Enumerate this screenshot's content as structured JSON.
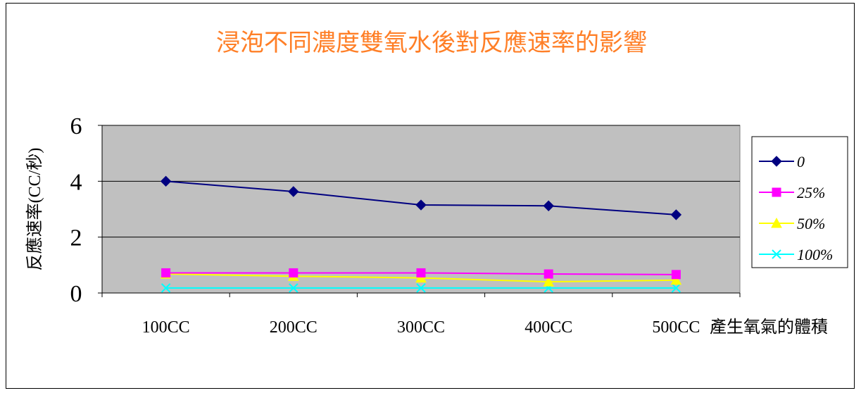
{
  "chart_data": {
    "type": "line",
    "title": "浸泡不同濃度雙氧水後對反應速率的影響",
    "xlabel": "產生氧氣的體積",
    "ylabel": "反應速率(CC/秒)",
    "categories": [
      "100CC",
      "200CC",
      "300CC",
      "400CC",
      "500CC"
    ],
    "ylim": [
      0,
      6
    ],
    "yticks": [
      "0",
      "2",
      "4",
      "6"
    ],
    "grid": true,
    "legend_position": "right",
    "plot_background": "#c0c0c0",
    "series": [
      {
        "name": "0",
        "color": "#000080",
        "marker": "diamond",
        "values": [
          4.0,
          3.63,
          3.15,
          3.12,
          2.8
        ]
      },
      {
        "name": "25%",
        "color": "#ff00ff",
        "marker": "square",
        "values": [
          0.72,
          0.72,
          0.72,
          0.68,
          0.66
        ]
      },
      {
        "name": "50%",
        "color": "#ffff00",
        "marker": "triangle",
        "values": [
          0.68,
          0.6,
          0.54,
          0.4,
          0.46
        ]
      },
      {
        "name": "100%",
        "color": "#00ffff",
        "marker": "x",
        "values": [
          0.18,
          0.18,
          0.18,
          0.18,
          0.18
        ]
      }
    ]
  }
}
